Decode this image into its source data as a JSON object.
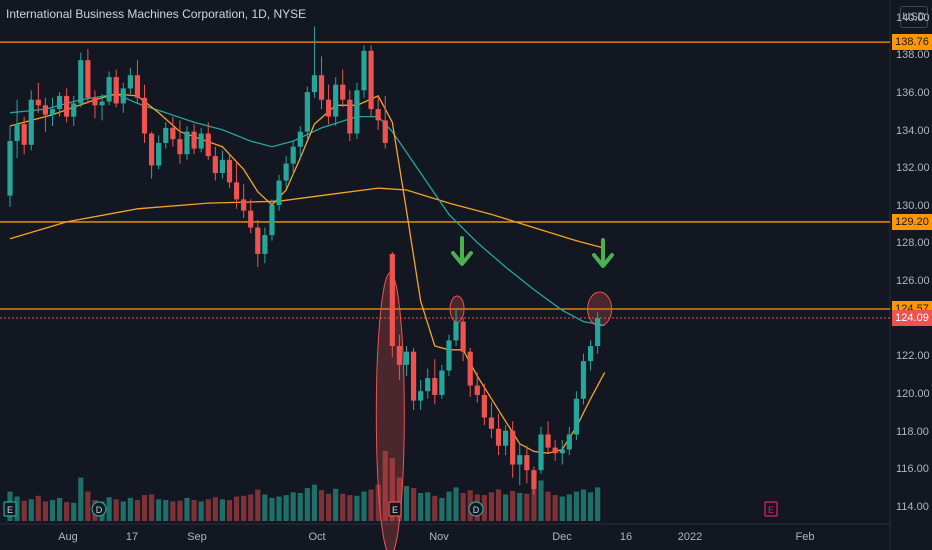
{
  "header": {
    "title": "International Business Machines Corporation, 1D, NYSE",
    "currency": "USD"
  },
  "chart_data": {
    "type": "candlestick",
    "y_axis": {
      "ticks": [
        "140.00",
        "138.00",
        "136.00",
        "134.00",
        "132.00",
        "130.00",
        "128.00",
        "126.00",
        "124.00",
        "122.00",
        "120.00",
        "118.00",
        "116.00",
        "114.00"
      ],
      "range": [
        112.5,
        141.0
      ]
    },
    "x_axis": {
      "ticks": [
        "Aug",
        "17",
        "Sep",
        "Oct",
        "Nov",
        "Dec",
        "16",
        "2022",
        "Feb"
      ]
    },
    "price_lines": [
      {
        "label": "138.76",
        "value": 138.76
      },
      {
        "label": "129.20",
        "value": 129.2
      },
      {
        "label": "124.57",
        "value": 124.57
      }
    ],
    "last_price": {
      "label": "124.09",
      "value": 124.09
    },
    "event_markers": [
      "E",
      "D",
      "E",
      "D",
      "E"
    ],
    "colors": {
      "up": "#26a69a",
      "down": "#ef5350",
      "ma_fast": "#f7a325",
      "ma_mid": "#26a69a",
      "ma_slow": "#f7a325",
      "hline": "#ff9800",
      "arrow": "#4caf50",
      "highlight": "#ef5350",
      "vol_up": "#1f6e68",
      "vol_down": "#7e3237"
    },
    "candles": [
      [
        130.6,
        134.3,
        130.0,
        133.5
      ],
      [
        133.5,
        135.7,
        132.6,
        134.4
      ],
      [
        134.4,
        134.8,
        132.8,
        133.3
      ],
      [
        133.3,
        136.2,
        133.0,
        135.7
      ],
      [
        135.7,
        136.6,
        135.0,
        135.4
      ],
      [
        135.4,
        135.8,
        134.0,
        134.9
      ],
      [
        134.9,
        135.8,
        134.3,
        135.2
      ],
      [
        135.2,
        136.1,
        134.8,
        135.9
      ],
      [
        135.9,
        136.3,
        134.5,
        134.8
      ],
      [
        134.8,
        135.9,
        134.3,
        135.5
      ],
      [
        135.5,
        138.2,
        135.3,
        137.8
      ],
      [
        137.8,
        138.4,
        135.5,
        135.8
      ],
      [
        135.8,
        136.2,
        134.7,
        135.4
      ],
      [
        135.4,
        136.0,
        134.6,
        135.6
      ],
      [
        135.6,
        137.2,
        135.4,
        136.9
      ],
      [
        136.9,
        137.3,
        135.3,
        135.5
      ],
      [
        135.5,
        136.6,
        135.0,
        136.3
      ],
      [
        136.3,
        137.4,
        136.0,
        137.0
      ],
      [
        137.0,
        137.8,
        135.5,
        135.8
      ],
      [
        135.8,
        136.5,
        133.4,
        133.9
      ],
      [
        133.9,
        134.0,
        131.5,
        132.2
      ],
      [
        132.2,
        133.8,
        132.0,
        133.4
      ],
      [
        133.4,
        134.5,
        133.1,
        134.2
      ],
      [
        134.2,
        134.8,
        133.2,
        133.6
      ],
      [
        133.6,
        134.6,
        132.3,
        132.8
      ],
      [
        132.8,
        134.3,
        132.5,
        134.0
      ],
      [
        134.0,
        134.4,
        132.8,
        133.1
      ],
      [
        133.1,
        134.2,
        132.9,
        133.9
      ],
      [
        133.9,
        134.5,
        132.5,
        132.7
      ],
      [
        132.7,
        133.2,
        131.4,
        131.8
      ],
      [
        131.8,
        133.0,
        131.5,
        132.5
      ],
      [
        132.5,
        132.8,
        131.0,
        131.3
      ],
      [
        131.3,
        132.4,
        129.9,
        130.4
      ],
      [
        130.4,
        131.2,
        129.4,
        129.8
      ],
      [
        129.8,
        130.4,
        128.6,
        128.9
      ],
      [
        128.9,
        129.3,
        126.8,
        127.5
      ],
      [
        127.5,
        128.9,
        127.0,
        128.5
      ],
      [
        128.5,
        130.4,
        128.2,
        130.1
      ],
      [
        130.1,
        131.7,
        129.8,
        131.4
      ],
      [
        131.4,
        132.7,
        131.0,
        132.3
      ],
      [
        132.3,
        133.5,
        131.7,
        133.2
      ],
      [
        133.2,
        134.3,
        132.6,
        134.0
      ],
      [
        134.0,
        136.4,
        133.6,
        136.1
      ],
      [
        136.1,
        139.6,
        135.8,
        137.0
      ],
      [
        137.0,
        138.0,
        135.2,
        135.7
      ],
      [
        135.7,
        136.5,
        134.4,
        134.8
      ],
      [
        134.8,
        136.9,
        134.3,
        136.5
      ],
      [
        136.5,
        137.3,
        135.3,
        135.7
      ],
      [
        135.7,
        136.2,
        133.5,
        133.9
      ],
      [
        133.9,
        136.6,
        133.6,
        136.2
      ],
      [
        136.2,
        138.6,
        135.8,
        138.3
      ],
      [
        138.3,
        138.6,
        134.8,
        135.2
      ],
      [
        135.2,
        135.9,
        134.1,
        134.6
      ],
      [
        134.6,
        135.9,
        133.1,
        133.4
      ],
      [
        127.5,
        127.6,
        122.0,
        122.6
      ],
      [
        122.6,
        123.2,
        120.8,
        121.6
      ],
      [
        121.6,
        122.6,
        121.0,
        122.3
      ],
      [
        122.3,
        122.5,
        119.2,
        119.7
      ],
      [
        119.7,
        120.8,
        119.2,
        120.2
      ],
      [
        120.2,
        121.4,
        119.8,
        120.9
      ],
      [
        120.9,
        121.9,
        119.5,
        120.0
      ],
      [
        120.0,
        121.6,
        119.8,
        121.3
      ],
      [
        121.3,
        123.2,
        121.0,
        122.9
      ],
      [
        122.9,
        124.6,
        122.6,
        123.9
      ],
      [
        123.9,
        124.1,
        121.8,
        122.3
      ],
      [
        122.3,
        122.5,
        119.9,
        120.5
      ],
      [
        120.5,
        121.2,
        119.6,
        120.0
      ],
      [
        120.0,
        120.6,
        118.4,
        118.8
      ],
      [
        118.8,
        119.6,
        117.7,
        118.2
      ],
      [
        118.2,
        119.0,
        116.8,
        117.3
      ],
      [
        117.3,
        118.4,
        116.8,
        118.1
      ],
      [
        118.1,
        118.6,
        115.6,
        116.3
      ],
      [
        116.3,
        117.4,
        115.2,
        116.8
      ],
      [
        116.8,
        117.3,
        115.3,
        116.0
      ],
      [
        116.0,
        116.2,
        114.7,
        115.0
      ],
      [
        116.0,
        118.3,
        115.8,
        117.9
      ],
      [
        117.9,
        118.6,
        116.9,
        117.2
      ],
      [
        117.2,
        117.6,
        116.5,
        116.9
      ],
      [
        116.9,
        117.6,
        116.3,
        117.1
      ],
      [
        117.1,
        118.3,
        116.8,
        117.9
      ],
      [
        117.9,
        120.2,
        117.6,
        119.8
      ],
      [
        119.8,
        122.2,
        119.5,
        121.8
      ],
      [
        121.8,
        122.9,
        121.3,
        122.6
      ],
      [
        122.6,
        124.4,
        122.2,
        124.09
      ]
    ],
    "volumes": [
      0.42,
      0.35,
      0.29,
      0.31,
      0.36,
      0.28,
      0.3,
      0.33,
      0.27,
      0.26,
      0.62,
      0.42,
      0.3,
      0.28,
      0.34,
      0.31,
      0.28,
      0.33,
      0.3,
      0.37,
      0.38,
      0.31,
      0.3,
      0.28,
      0.29,
      0.33,
      0.3,
      0.28,
      0.31,
      0.34,
      0.31,
      0.3,
      0.35,
      0.36,
      0.38,
      0.45,
      0.38,
      0.33,
      0.35,
      0.37,
      0.41,
      0.4,
      0.47,
      0.52,
      0.44,
      0.39,
      0.46,
      0.39,
      0.37,
      0.36,
      0.42,
      0.45,
      0.52,
      1.0,
      0.9,
      0.62,
      0.5,
      0.47,
      0.4,
      0.41,
      0.36,
      0.33,
      0.42,
      0.48,
      0.4,
      0.44,
      0.38,
      0.37,
      0.41,
      0.45,
      0.38,
      0.43,
      0.4,
      0.39,
      0.46,
      0.58,
      0.42,
      0.37,
      0.35,
      0.38,
      0.42,
      0.45,
      0.41,
      0.48
    ],
    "ma_fast": [
      [
        0,
        134.3
      ],
      [
        3,
        134.6
      ],
      [
        6,
        134.9
      ],
      [
        9,
        135.3
      ],
      [
        12,
        135.7
      ],
      [
        15,
        136.0
      ],
      [
        18,
        135.9
      ],
      [
        21,
        135.0
      ],
      [
        24,
        134.0
      ],
      [
        27,
        133.6
      ],
      [
        30,
        133.2
      ],
      [
        33,
        132.0
      ],
      [
        35,
        130.8
      ],
      [
        37,
        130.1
      ],
      [
        39,
        130.9
      ],
      [
        41,
        132.6
      ],
      [
        43,
        134.4
      ],
      [
        46,
        135.4
      ],
      [
        49,
        135.4
      ],
      [
        52,
        135.9
      ],
      [
        54,
        134.5
      ],
      [
        56,
        129.8
      ],
      [
        58,
        125.0
      ],
      [
        60,
        122.6
      ],
      [
        62,
        122.4
      ],
      [
        64,
        122.4
      ],
      [
        66,
        121.0
      ],
      [
        68,
        119.8
      ],
      [
        70,
        118.6
      ],
      [
        72,
        117.4
      ],
      [
        74,
        117.0
      ],
      [
        76,
        116.9
      ],
      [
        78,
        117.1
      ],
      [
        80,
        118.3
      ],
      [
        82,
        119.8
      ],
      [
        84,
        121.2
      ]
    ],
    "ma_mid": [
      [
        0,
        135.0
      ],
      [
        5,
        135.2
      ],
      [
        10,
        135.7
      ],
      [
        15,
        136.0
      ],
      [
        18,
        135.5
      ],
      [
        22,
        135.0
      ],
      [
        26,
        134.5
      ],
      [
        30,
        134.1
      ],
      [
        34,
        133.5
      ],
      [
        37,
        133.2
      ],
      [
        40,
        133.5
      ],
      [
        44,
        134.2
      ],
      [
        49,
        134.8
      ],
      [
        52,
        134.8
      ],
      [
        54,
        134.0
      ],
      [
        58,
        131.8
      ],
      [
        62,
        129.6
      ],
      [
        66,
        128.1
      ],
      [
        70,
        126.8
      ],
      [
        74,
        125.6
      ],
      [
        78,
        124.5
      ],
      [
        81,
        123.9
      ],
      [
        84,
        123.7
      ]
    ],
    "ma_slow": [
      [
        0,
        128.3
      ],
      [
        8,
        129.2
      ],
      [
        18,
        129.9
      ],
      [
        28,
        130.2
      ],
      [
        38,
        130.3
      ],
      [
        46,
        130.7
      ],
      [
        52,
        131.0
      ],
      [
        56,
        130.9
      ],
      [
        62,
        130.2
      ],
      [
        68,
        129.6
      ],
      [
        74,
        128.9
      ],
      [
        80,
        128.2
      ],
      [
        84,
        127.8
      ]
    ]
  }
}
